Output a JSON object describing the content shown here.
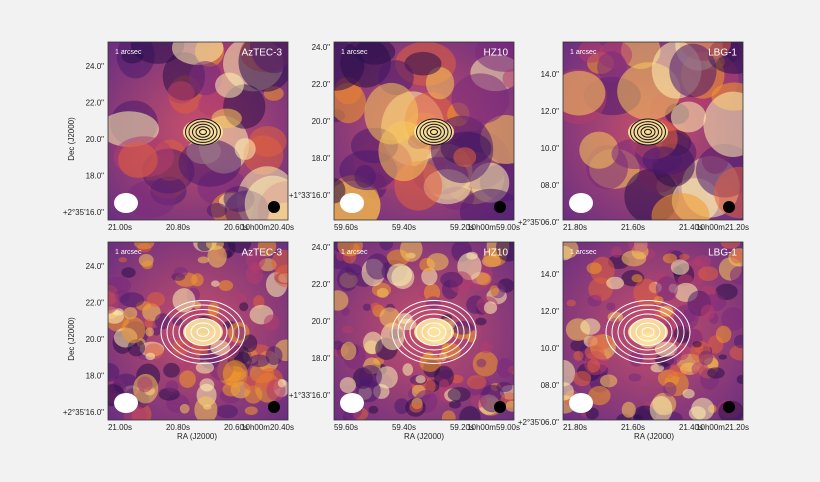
{
  "axis_labels": {
    "dec": "Dec (J2000)",
    "ra": "RA (J2000)"
  },
  "panels": [
    {
      "source": "AzTEC-3",
      "scale_label": "1 arcsec",
      "yticks": [
        "24.0\"",
        "22.0\"",
        "20.0\"",
        "18.0\"",
        "+2°35'16.0\""
      ],
      "xticks": [
        "21.00s",
        "20.80s",
        "20.60s",
        "10h00m20.40s"
      ]
    },
    {
      "source": "HZ10",
      "scale_label": "1 arcsec",
      "yticks": [
        "24.0\"",
        "22.0\"",
        "20.0\"",
        "18.0\"",
        "+1°33'16.0\""
      ],
      "xticks": [
        "59.60s",
        "59.40s",
        "59.20s",
        "10h00m59.00s"
      ]
    },
    {
      "source": "LBG-1",
      "scale_label": "1 arcsec",
      "yticks": [
        "14.0\"",
        "12.0\"",
        "10.0\"",
        "08.0\"",
        "+2°35'06.0\""
      ],
      "xticks": [
        "21.80s",
        "21.60s",
        "21.40s",
        "10h00m21.20s"
      ]
    },
    {
      "source": "AzTEC-3",
      "scale_label": "1 arcsec",
      "yticks": [
        "24.0\"",
        "22.0\"",
        "20.0\"",
        "18.0\"",
        "+2°35'16.0\""
      ],
      "xticks": [
        "21.00s",
        "20.80s",
        "20.60s",
        "10h00m20.40s"
      ]
    },
    {
      "source": "HZ10",
      "scale_label": "1 arcsec",
      "yticks": [
        "24.0\"",
        "22.0\"",
        "20.0\"",
        "18.0\"",
        "+1°33'16.0\""
      ],
      "xticks": [
        "59.60s",
        "59.40s",
        "59.20s",
        "10h00m59.00s"
      ]
    },
    {
      "source": "LBG-1",
      "scale_label": "1 arcsec",
      "yticks": [
        "14.0\"",
        "12.0\"",
        "10.0\"",
        "08.0\"",
        "+2°35'06.0\""
      ],
      "xticks": [
        "21.80s",
        "21.60s",
        "21.40s",
        "10h00m21.20s"
      ]
    }
  ]
}
